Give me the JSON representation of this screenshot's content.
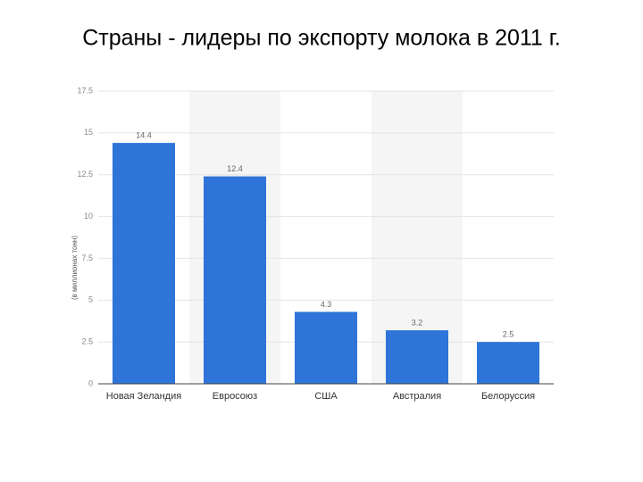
{
  "chart_data": {
    "type": "bar",
    "title": "Страны - лидеры по экспорту молока в 2011 г.",
    "y_label": "(в миллионах тонн)",
    "categories": [
      "Новая Зеландия",
      "Евросоюз",
      "США",
      "Австралия",
      "Белоруссия"
    ],
    "values": [
      14.4,
      12.4,
      4.3,
      3.2,
      2.5
    ],
    "color": "#2f74d8",
    "ylim": [
      0,
      17.5
    ],
    "yticks": [
      0,
      2.5,
      5,
      7.5,
      10,
      12.5,
      15,
      17.5
    ],
    "grid": true
  }
}
